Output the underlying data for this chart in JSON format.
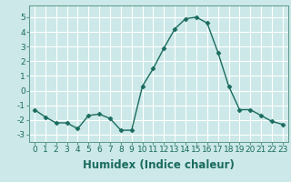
{
  "x": [
    0,
    1,
    2,
    3,
    4,
    5,
    6,
    7,
    8,
    9,
    10,
    11,
    12,
    13,
    14,
    15,
    16,
    17,
    18,
    19,
    20,
    21,
    22,
    23
  ],
  "y": [
    -1.3,
    -1.8,
    -2.2,
    -2.2,
    -2.6,
    -1.7,
    -1.6,
    -1.9,
    -2.7,
    -2.7,
    0.3,
    1.5,
    2.9,
    4.2,
    4.9,
    5.0,
    4.6,
    2.6,
    0.3,
    -1.3,
    -1.3,
    -1.7,
    -2.1,
    -2.3
  ],
  "line_color": "#1a6b5e",
  "marker": "D",
  "marker_size": 2.5,
  "bg_color": "#cce8e8",
  "grid_color": "#ffffff",
  "xlabel": "Humidex (Indice chaleur)",
  "ylim": [
    -3.5,
    5.8
  ],
  "xlim": [
    -0.5,
    23.5
  ],
  "yticks": [
    -3,
    -2,
    -1,
    0,
    1,
    2,
    3,
    4,
    5
  ],
  "xticks": [
    0,
    1,
    2,
    3,
    4,
    5,
    6,
    7,
    8,
    9,
    10,
    11,
    12,
    13,
    14,
    15,
    16,
    17,
    18,
    19,
    20,
    21,
    22,
    23
  ],
  "tick_fontsize": 6.5,
  "xlabel_fontsize": 8.5
}
